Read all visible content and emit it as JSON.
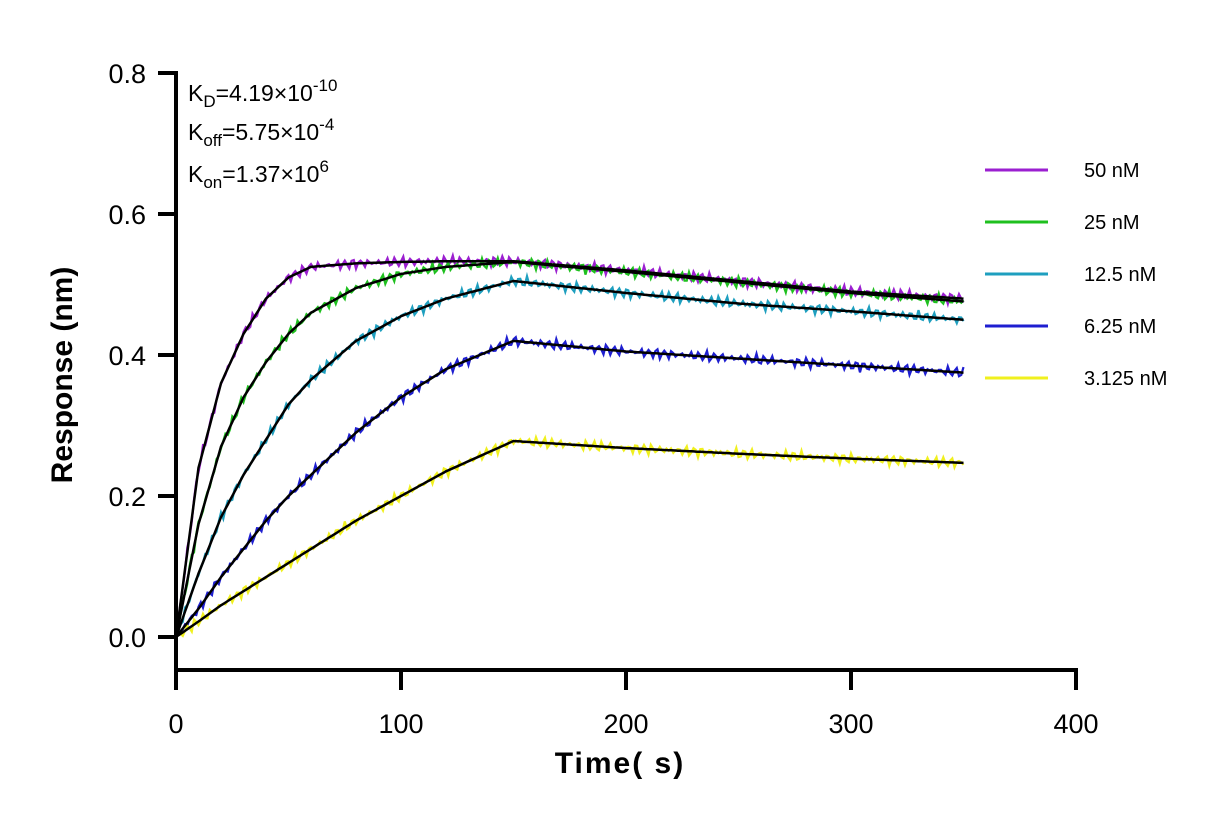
{
  "chart_data": {
    "type": "line",
    "title": "",
    "xlabel": "Time( s)",
    "ylabel": "Response (nm)",
    "xlim": [
      0,
      400
    ],
    "ylim": [
      -0.05,
      0.8
    ],
    "x_ticks": [
      0,
      100,
      200,
      300,
      400
    ],
    "x_tick_labels": [
      "0",
      "100",
      "200",
      "300",
      "400"
    ],
    "y_ticks": [
      0.0,
      0.2,
      0.4,
      0.6,
      0.8
    ],
    "y_tick_labels": [
      "0.0",
      "0.2",
      "0.4",
      "0.6",
      "0.8"
    ],
    "grid": false,
    "legend_position": "right",
    "annotations": {
      "kd": {
        "label": "K",
        "sub": "D",
        "eq": "=4.19×10",
        "sup": "-10"
      },
      "koff": {
        "label": "K",
        "sub": "off",
        "eq": "=5.75×10",
        "sup": "-4"
      },
      "kon": {
        "label": "K",
        "sub": "on",
        "eq": "=1.37×10",
        "sup": "6"
      }
    },
    "association_end": 150,
    "series": [
      {
        "name": "50 nM",
        "color": "#9B1FD0",
        "x": [
          0,
          10,
          20,
          30,
          40,
          50,
          60,
          80,
          100,
          120,
          150,
          200,
          250,
          300,
          350
        ],
        "y": [
          0.0,
          0.24,
          0.36,
          0.43,
          0.48,
          0.51,
          0.525,
          0.53,
          0.532,
          0.533,
          0.533,
          0.52,
          0.505,
          0.49,
          0.48
        ]
      },
      {
        "name": "25 nM",
        "color": "#1FC01F",
        "x": [
          0,
          10,
          20,
          30,
          40,
          50,
          60,
          80,
          100,
          120,
          150,
          200,
          250,
          300,
          350
        ],
        "y": [
          0.0,
          0.16,
          0.27,
          0.34,
          0.39,
          0.43,
          0.46,
          0.495,
          0.515,
          0.525,
          0.532,
          0.518,
          0.503,
          0.488,
          0.476
        ]
      },
      {
        "name": "12.5 nM",
        "color": "#1E9FBF",
        "x": [
          0,
          10,
          20,
          30,
          40,
          50,
          60,
          80,
          100,
          120,
          150,
          200,
          250,
          300,
          350
        ],
        "y": [
          0.0,
          0.09,
          0.17,
          0.23,
          0.28,
          0.33,
          0.365,
          0.42,
          0.455,
          0.48,
          0.505,
          0.488,
          0.473,
          0.462,
          0.45
        ]
      },
      {
        "name": "6.25 nM",
        "color": "#1E1ED0",
        "x": [
          0,
          10,
          20,
          30,
          40,
          50,
          60,
          80,
          100,
          120,
          150,
          200,
          250,
          300,
          350
        ],
        "y": [
          0.0,
          0.04,
          0.085,
          0.125,
          0.165,
          0.2,
          0.23,
          0.29,
          0.34,
          0.38,
          0.42,
          0.405,
          0.395,
          0.385,
          0.375
        ]
      },
      {
        "name": "3.125 nM",
        "color": "#F0F01E",
        "x": [
          0,
          10,
          20,
          30,
          40,
          50,
          60,
          80,
          100,
          120,
          150,
          200,
          250,
          300,
          350
        ],
        "y": [
          0.0,
          0.022,
          0.045,
          0.065,
          0.085,
          0.105,
          0.125,
          0.165,
          0.2,
          0.235,
          0.278,
          0.268,
          0.26,
          0.253,
          0.247
        ]
      }
    ]
  }
}
